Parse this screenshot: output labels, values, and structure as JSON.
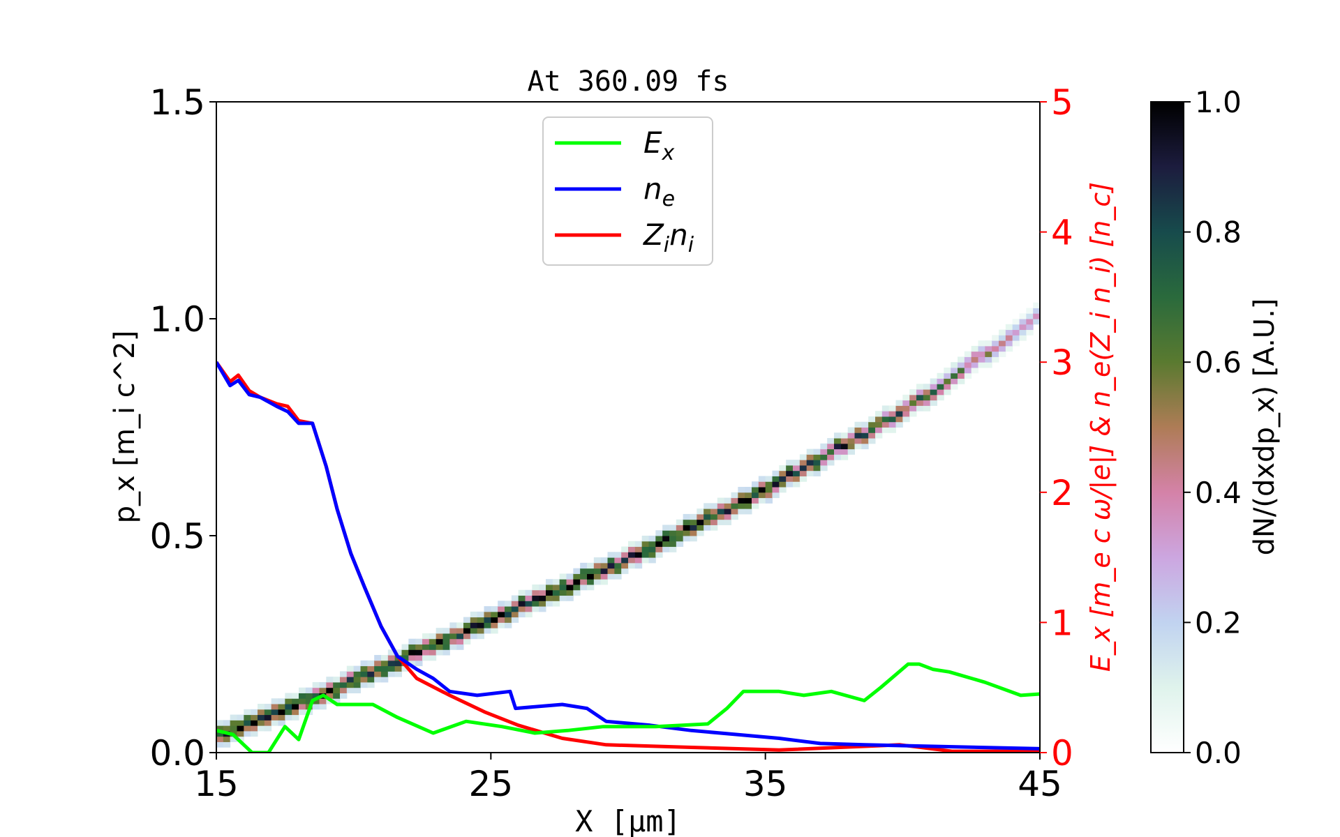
{
  "chart_data": {
    "type": "heatmap+line",
    "title": "At 360.09 fs",
    "xlabel": "X [μm]",
    "ylabel_left": "p_x [m_i c^2]",
    "ylabel_right": "E_x [m_e c ω/|e|] & n_e(Z_i n_i) [n_c]",
    "colorbar_label": "dN/(dxdp_x) [A.U.]",
    "xlim": [
      15,
      45
    ],
    "ylim_left": [
      0,
      1.5
    ],
    "ylim_right": [
      0,
      5
    ],
    "clim": [
      0,
      1
    ],
    "xticks": [
      "15",
      "25",
      "35",
      "45"
    ],
    "yticks_left": [
      "0.0",
      "0.5",
      "1.0",
      "1.5"
    ],
    "yticks_right": [
      "0",
      "1",
      "2",
      "3",
      "4",
      "5"
    ],
    "cticks": [
      "0.0",
      "0.2",
      "0.4",
      "0.6",
      "0.8",
      "1.0"
    ],
    "grid": false,
    "legend_placement": "upper-center",
    "heatmap_ridge": {
      "x": [
        15,
        20,
        25,
        30,
        35,
        40,
        45
      ],
      "px": [
        0.03,
        0.16,
        0.3,
        0.44,
        0.6,
        0.78,
        1.0
      ],
      "peak_intensity": [
        1.0,
        1.0,
        1.0,
        1.0,
        1.0,
        0.8,
        0.35
      ]
    },
    "series": [
      {
        "name": "E_x",
        "label_main": "E",
        "label_sub": "x",
        "color": "#00ff00",
        "axis": "right",
        "x": [
          15,
          15.6,
          16.3,
          16.9,
          17.2,
          17.5,
          18.0,
          18.5,
          18.9,
          19.4,
          20.7,
          21.6,
          22.9,
          24.1,
          25.4,
          26.6,
          27.8,
          29.1,
          31.0,
          32.9,
          33.6,
          34.2,
          35.5,
          36.4,
          37.4,
          38.6,
          39.2,
          40.2,
          40.6,
          41.1,
          41.7,
          43.0,
          44.3,
          45
        ],
        "y": [
          0.17,
          0.14,
          0.0,
          0.0,
          0.1,
          0.2,
          0.1,
          0.4,
          0.44,
          0.37,
          0.37,
          0.27,
          0.15,
          0.24,
          0.2,
          0.15,
          0.17,
          0.2,
          0.2,
          0.22,
          0.34,
          0.47,
          0.47,
          0.44,
          0.47,
          0.4,
          0.5,
          0.68,
          0.68,
          0.64,
          0.62,
          0.54,
          0.44,
          0.45
        ]
      },
      {
        "name": "n_e",
        "label_main": "n",
        "label_sub": "e",
        "color": "#0000ff",
        "axis": "right",
        "x": [
          15,
          15.5,
          15.8,
          16.2,
          16.6,
          17.2,
          17.6,
          18.0,
          18.5,
          19.0,
          19.4,
          19.9,
          20.4,
          21.0,
          21.6,
          22.3,
          22.9,
          23.5,
          24.5,
          25.7,
          25.9,
          27.6,
          28.5,
          29.2,
          30.8,
          32.3,
          33.9,
          35.5,
          37.0,
          38.6,
          45
        ],
        "y": [
          3.0,
          2.82,
          2.86,
          2.75,
          2.73,
          2.66,
          2.62,
          2.53,
          2.53,
          2.2,
          1.87,
          1.53,
          1.27,
          0.97,
          0.74,
          0.64,
          0.57,
          0.47,
          0.44,
          0.47,
          0.34,
          0.37,
          0.34,
          0.24,
          0.21,
          0.17,
          0.14,
          0.11,
          0.07,
          0.06,
          0.03
        ]
      },
      {
        "name": "Z_i n_i",
        "label_main": "Z",
        "label_sub": "i",
        "label_main2": "n",
        "label_sub2": "i",
        "color": "#ff0000",
        "axis": "right",
        "x": [
          15,
          15.5,
          15.8,
          16.2,
          16.6,
          17.2,
          17.6,
          18.0,
          18.5,
          19.0,
          19.4,
          19.9,
          20.4,
          21.0,
          21.6,
          22.3,
          23.5,
          24.8,
          26.0,
          27.6,
          29.2,
          32.3,
          35.5,
          39.9,
          41.8,
          45
        ],
        "y": [
          3.0,
          2.85,
          2.9,
          2.78,
          2.73,
          2.68,
          2.66,
          2.55,
          2.53,
          2.2,
          1.87,
          1.53,
          1.27,
          0.97,
          0.74,
          0.57,
          0.44,
          0.31,
          0.21,
          0.11,
          0.06,
          0.04,
          0.02,
          0.06,
          0.01,
          0.01
        ]
      }
    ]
  }
}
